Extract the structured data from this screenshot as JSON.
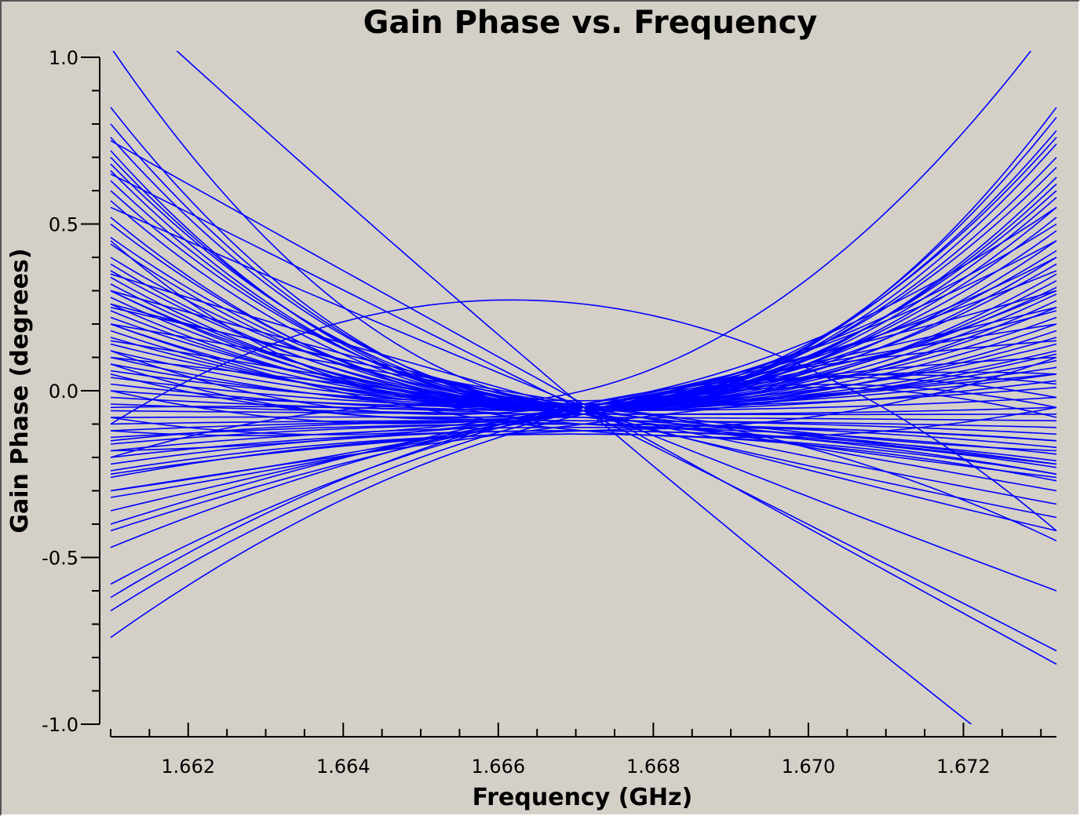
{
  "chart_data": {
    "type": "line",
    "title": "Gain Phase vs. Frequency",
    "xlabel": "Frequency (GHz)",
    "ylabel": "Gain Phase (degrees)",
    "xlim": [
      1.661,
      1.6732
    ],
    "ylim": [
      -1.0,
      1.0
    ],
    "x_ticks": [
      1.662,
      1.664,
      1.666,
      1.668,
      1.67,
      1.672
    ],
    "x_tick_labels": [
      "1.662",
      "1.664",
      "1.666",
      "1.668",
      "1.670",
      "1.672"
    ],
    "y_ticks": [
      1.0,
      0.5,
      0.0,
      -0.5,
      -1.0
    ],
    "y_tick_labels": [
      "1.0",
      "0.5",
      "0.0",
      "-0.5",
      "-1.0"
    ],
    "x_minor_step": 0.0005,
    "y_minor_step": 0.1,
    "grid": false,
    "legend": "none",
    "line_color": "#0000ff",
    "background_color": "#d4d0c8",
    "series_note_x": [
      1.661,
      1.6671,
      1.6732
    ],
    "series": [
      {
        "values": [
          1.03,
          -0.05,
          0.85
        ]
      },
      {
        "values": [
          0.85,
          -0.06,
          0.82
        ]
      },
      {
        "values": [
          0.8,
          -0.05,
          0.78
        ]
      },
      {
        "values": [
          0.76,
          -0.04,
          0.76
        ]
      },
      {
        "values": [
          0.72,
          -0.06,
          0.74
        ]
      },
      {
        "values": [
          0.7,
          -0.05,
          0.7
        ]
      },
      {
        "values": [
          0.68,
          -0.04,
          0.67
        ]
      },
      {
        "values": [
          0.66,
          -0.06,
          0.64
        ]
      },
      {
        "values": [
          0.63,
          -0.05,
          0.62
        ]
      },
      {
        "values": [
          0.6,
          -0.04,
          0.6
        ]
      },
      {
        "values": [
          0.57,
          -0.05,
          0.58
        ]
      },
      {
        "values": [
          0.52,
          -0.06,
          0.55
        ]
      },
      {
        "values": [
          0.5,
          -0.05,
          0.52
        ]
      },
      {
        "values": [
          0.46,
          -0.04,
          0.48
        ]
      },
      {
        "values": [
          0.44,
          -0.05,
          0.45
        ]
      },
      {
        "values": [
          0.4,
          -0.03,
          0.42
        ]
      },
      {
        "values": [
          0.38,
          -0.05,
          0.4
        ]
      },
      {
        "values": [
          0.36,
          -0.04,
          0.38
        ]
      },
      {
        "values": [
          0.34,
          -0.06,
          0.35
        ]
      },
      {
        "values": [
          0.32,
          -0.05,
          0.33
        ]
      },
      {
        "values": [
          0.3,
          -0.04,
          0.31
        ]
      },
      {
        "values": [
          0.28,
          -0.05,
          0.29
        ]
      },
      {
        "values": [
          0.26,
          -0.06,
          0.27
        ]
      },
      {
        "values": [
          0.24,
          -0.05,
          0.25
        ]
      },
      {
        "values": [
          0.22,
          -0.04,
          0.22
        ]
      },
      {
        "values": [
          0.2,
          -0.05,
          0.2
        ]
      },
      {
        "values": [
          0.18,
          -0.06,
          0.18
        ]
      },
      {
        "values": [
          0.16,
          -0.05,
          0.16
        ]
      },
      {
        "values": [
          0.14,
          -0.04,
          0.14
        ]
      },
      {
        "values": [
          0.12,
          -0.05,
          0.12
        ]
      },
      {
        "values": [
          0.1,
          -0.06,
          0.11
        ]
      },
      {
        "values": [
          0.08,
          -0.05,
          0.09
        ]
      },
      {
        "values": [
          0.06,
          -0.04,
          0.07
        ]
      },
      {
        "values": [
          0.04,
          -0.05,
          0.05
        ]
      },
      {
        "values": [
          0.02,
          -0.06,
          0.03
        ]
      },
      {
        "values": [
          0.0,
          -0.05,
          0.01
        ]
      },
      {
        "values": [
          -0.02,
          -0.06,
          -0.02
        ]
      },
      {
        "values": [
          -0.04,
          -0.07,
          -0.05
        ]
      },
      {
        "values": [
          -0.06,
          -0.07,
          -0.07
        ]
      },
      {
        "values": [
          -0.08,
          -0.08,
          -0.09
        ]
      },
      {
        "values": [
          -0.1,
          -0.09,
          -0.11
        ]
      },
      {
        "values": [
          -0.12,
          -0.09,
          -0.13
        ]
      },
      {
        "values": [
          -0.14,
          -0.1,
          -0.15
        ]
      },
      {
        "values": [
          -0.16,
          -0.1,
          -0.17
        ]
      },
      {
        "values": [
          -0.18,
          -0.11,
          -0.19
        ]
      },
      {
        "values": [
          -0.2,
          -0.12,
          -0.21
        ]
      },
      {
        "values": [
          -0.22,
          -0.12,
          -0.23
        ]
      },
      {
        "values": [
          -0.24,
          -0.13,
          -0.25
        ]
      },
      {
        "values": [
          -0.26,
          -0.13,
          -0.27
        ]
      },
      {
        "values": [
          -0.3,
          -0.05,
          0.3
        ]
      },
      {
        "values": [
          -0.32,
          -0.06,
          0.25
        ]
      },
      {
        "values": [
          -0.36,
          -0.05,
          0.2
        ]
      },
      {
        "values": [
          -0.4,
          -0.04,
          0.15
        ]
      },
      {
        "values": [
          -0.42,
          -0.06,
          0.1
        ]
      },
      {
        "values": [
          -0.47,
          -0.05,
          0.05
        ]
      },
      {
        "values": [
          -0.58,
          -0.05,
          0.02
        ]
      },
      {
        "values": [
          -0.62,
          -0.04,
          -0.02
        ]
      },
      {
        "values": [
          -0.66,
          -0.06,
          -0.05
        ]
      },
      {
        "values": [
          -0.74,
          -0.07,
          -0.08
        ]
      },
      {
        "values": [
          0.35,
          -0.06,
          -0.42
        ]
      },
      {
        "values": [
          0.3,
          -0.07,
          -0.38
        ]
      },
      {
        "values": [
          0.25,
          -0.06,
          -0.34
        ]
      },
      {
        "values": [
          0.2,
          -0.05,
          -0.3
        ]
      },
      {
        "values": [
          0.15,
          -0.07,
          -0.26
        ]
      },
      {
        "values": [
          0.1,
          -0.06,
          -0.22
        ]
      },
      {
        "values": [
          0.55,
          -0.05,
          -0.6
        ]
      },
      {
        "values": [
          0.65,
          -0.06,
          -0.78
        ]
      },
      {
        "values": [
          0.75,
          -0.04,
          -0.82
        ]
      },
      {
        "values": [
          -0.1,
          0.26,
          -0.42
        ]
      },
      {
        "values": [
          -0.2,
          -0.05,
          -0.45
        ]
      },
      {
        "values": [
          -0.15,
          -0.1,
          -0.25
        ]
      },
      {
        "values": [
          -0.05,
          -0.08,
          -0.22
        ]
      },
      {
        "values": [
          0.05,
          -0.07,
          0.3
        ]
      },
      {
        "values": [
          0.0,
          -0.06,
          0.4
        ]
      },
      {
        "values": [
          0.08,
          -0.05,
          0.5
        ]
      },
      {
        "values": [
          0.12,
          -0.04,
          0.55
        ]
      },
      {
        "values": [
          -0.08,
          -0.06,
          0.45
        ]
      },
      {
        "values": [
          -0.12,
          -0.05,
          0.36
        ]
      },
      {
        "values": [
          0.45,
          0.0,
          1.12
        ]
      },
      {
        "values": [
          1.2,
          -0.05,
          -1.2
        ]
      },
      {
        "values": [
          0.3,
          -0.1,
          0.1
        ]
      },
      {
        "values": [
          0.2,
          -0.12,
          -0.05
        ]
      },
      {
        "values": [
          -0.25,
          -0.12,
          -0.15
        ]
      },
      {
        "values": [
          -0.3,
          -0.1,
          0.05
        ]
      },
      {
        "values": [
          -0.18,
          -0.06,
          0.24
        ]
      },
      {
        "values": [
          0.26,
          -0.04,
          -0.18
        ]
      }
    ]
  }
}
